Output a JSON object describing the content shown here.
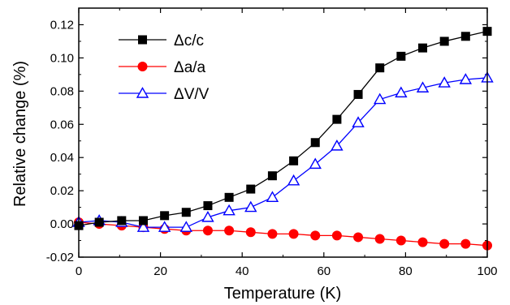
{
  "chart_data": {
    "type": "line",
    "xlabel": "Temperature (K)",
    "ylabel": "Relative change (%)",
    "xlim": [
      0,
      100
    ],
    "ylim": [
      -0.02,
      0.13
    ],
    "xticks": [
      "0",
      "20",
      "40",
      "60",
      "80",
      "100"
    ],
    "yticks": [
      "-0.02",
      "0.00",
      "0.02",
      "0.04",
      "0.06",
      "0.08",
      "0.10",
      "0.12"
    ],
    "legend_position": "top-left",
    "series": [
      {
        "name": "Δc/c",
        "color": "#000000",
        "marker": "filled-square",
        "x": [
          0,
          5,
          10.5,
          15.8,
          21,
          26.3,
          31.6,
          36.8,
          42.1,
          47.4,
          52.6,
          57.9,
          63.2,
          68.4,
          73.7,
          78.9,
          84.2,
          89.5,
          94.7,
          100
        ],
        "y": [
          -0.001,
          0.001,
          0.002,
          0.002,
          0.005,
          0.007,
          0.011,
          0.016,
          0.021,
          0.029,
          0.038,
          0.049,
          0.063,
          0.078,
          0.094,
          0.101,
          0.106,
          0.11,
          0.113,
          0.116
        ]
      },
      {
        "name": "Δa/a",
        "color": "#ff0000",
        "marker": "filled-circle",
        "x": [
          0,
          5,
          10.5,
          15.8,
          21,
          26.3,
          31.6,
          36.8,
          42.1,
          47.4,
          52.6,
          57.9,
          63.2,
          68.4,
          73.7,
          78.9,
          84.2,
          89.5,
          94.7,
          100
        ],
        "y": [
          0.001,
          0.0,
          -0.001,
          -0.002,
          -0.003,
          -0.004,
          -0.004,
          -0.004,
          -0.005,
          -0.006,
          -0.006,
          -0.007,
          -0.007,
          -0.008,
          -0.009,
          -0.01,
          -0.011,
          -0.012,
          -0.012,
          -0.013
        ]
      },
      {
        "name": "ΔV/V",
        "color": "#0000ff",
        "marker": "open-triangle",
        "x": [
          0,
          5,
          10.5,
          15.8,
          21,
          26.3,
          31.6,
          36.8,
          42.1,
          47.4,
          52.6,
          57.9,
          63.2,
          68.4,
          73.7,
          78.9,
          84.2,
          89.5,
          94.7,
          100
        ],
        "y": [
          0.001,
          0.002,
          0.001,
          -0.002,
          -0.002,
          -0.002,
          0.004,
          0.008,
          0.01,
          0.016,
          0.026,
          0.036,
          0.047,
          0.061,
          0.075,
          0.079,
          0.082,
          0.085,
          0.087,
          0.088
        ]
      }
    ]
  }
}
